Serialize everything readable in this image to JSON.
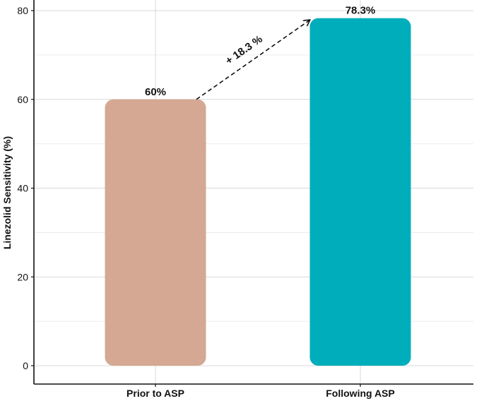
{
  "chart_data": {
    "type": "bar",
    "categories": [
      "Prior to ASP",
      "Following ASP"
    ],
    "values": [
      60,
      78.3
    ],
    "data_labels": [
      "60%",
      "78.3%"
    ],
    "title": "",
    "xlabel": "",
    "ylabel": "Linezolid Sensitivity (%)",
    "ylim": [
      0,
      80
    ],
    "yticks": [
      "0",
      "20",
      "40",
      "60",
      "80"
    ],
    "grid": true,
    "legend": "none",
    "colors": [
      "#D4A892",
      "#00AEBB"
    ],
    "annotation": {
      "text": "+ 18.3 %",
      "from_category": "Prior to ASP",
      "to_category": "Following ASP"
    }
  }
}
